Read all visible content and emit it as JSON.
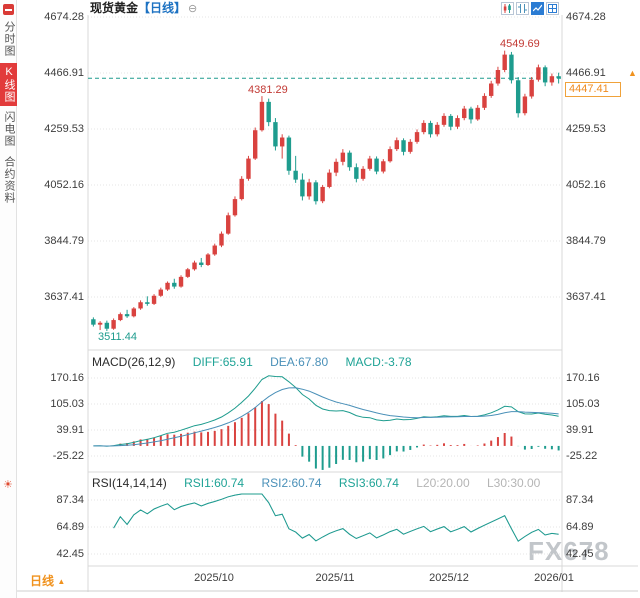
{
  "header": {
    "symbol": "现货黄金",
    "period": "【日线】",
    "collapse_icon": "⊖"
  },
  "toolbar": {
    "buttons": [
      {
        "name": "candlestick-style",
        "active": false
      },
      {
        "name": "ohlc-style",
        "active": false
      },
      {
        "name": "line-style",
        "active": true
      },
      {
        "name": "grid-style",
        "active": false
      }
    ]
  },
  "sidebar": {
    "items": [
      {
        "label": "分时图",
        "active": false
      },
      {
        "label": "K线图",
        "active": true
      },
      {
        "label": "闪电图",
        "active": false
      },
      {
        "label": "合约资料",
        "active": false
      }
    ],
    "tool_icon": "☀"
  },
  "main_chart": {
    "y_ticks": [
      "4674.28",
      "4466.91",
      "4259.53",
      "4052.16",
      "3844.79",
      "3637.41"
    ],
    "price_tag": "4447.41",
    "latest_arrow": "▲",
    "annotations": {
      "peak": "4549.69",
      "interim_peak": "4381.29",
      "low": "3511.44"
    }
  },
  "macd_panel": {
    "title": "MACD(26,12,9)",
    "diff": "DIFF:65.91",
    "dea": "DEA:67.80",
    "macd": "MACD:-3.78",
    "y_ticks": [
      "170.16",
      "105.03",
      "39.91",
      "-25.22"
    ]
  },
  "rsi_panel": {
    "title": "RSI(14,14,14)",
    "rsi1": "RSI1:60.74",
    "rsi2": "RSI2:60.74",
    "rsi3": "RSI3:60.74",
    "l20": "L20:20.00",
    "l30": "L30:30.00",
    "y_ticks": [
      "87.34",
      "64.89",
      "42.45"
    ]
  },
  "x_axis": {
    "period": "日线",
    "arrow": "▲",
    "ticks": [
      "2025/10",
      "2025/11",
      "2025/12",
      "2026/01"
    ]
  },
  "watermark": "FX678",
  "colors": {
    "up": "#d9423f",
    "down": "#1e9c8e",
    "dea_line": "#4a90b8",
    "accent": "#f0921e",
    "blue": "#1d72c2",
    "grid": "#e4e4e4",
    "border": "#d8d8d8"
  },
  "chart_data": {
    "type": "candlestick",
    "title": "现货黄金 日线",
    "conventions": {
      "up": "red",
      "down": "green"
    },
    "y_axis_ticks": [
      4674.28,
      4466.91,
      4259.53,
      4052.16,
      3844.79,
      3637.41
    ],
    "current_price": 4447.41,
    "high": 4549.69,
    "interim_high": 4381.29,
    "low": 3511.44,
    "month_ticks": [
      {
        "index": 18,
        "label": "2025/10"
      },
      {
        "index": 36,
        "label": "2025/11"
      },
      {
        "index": 53,
        "label": "2025/12"
      },
      {
        "index": 69,
        "label": "2026/01"
      }
    ],
    "ohlc": [
      [
        3555,
        3562,
        3528,
        3535
      ],
      [
        3535,
        3548,
        3515,
        3542
      ],
      [
        3542,
        3550,
        3511.44,
        3520
      ],
      [
        3520,
        3558,
        3516,
        3552
      ],
      [
        3552,
        3580,
        3548,
        3574
      ],
      [
        3574,
        3590,
        3560,
        3566
      ],
      [
        3566,
        3600,
        3562,
        3595
      ],
      [
        3595,
        3625,
        3590,
        3618
      ],
      [
        3618,
        3640,
        3605,
        3612
      ],
      [
        3612,
        3648,
        3608,
        3642
      ],
      [
        3642,
        3672,
        3638,
        3665
      ],
      [
        3665,
        3695,
        3660,
        3690
      ],
      [
        3690,
        3705,
        3668,
        3676
      ],
      [
        3676,
        3718,
        3672,
        3712
      ],
      [
        3712,
        3745,
        3708,
        3740
      ],
      [
        3740,
        3772,
        3735,
        3765
      ],
      [
        3765,
        3782,
        3748,
        3756
      ],
      [
        3756,
        3800,
        3752,
        3795
      ],
      [
        3795,
        3835,
        3790,
        3828
      ],
      [
        3828,
        3880,
        3822,
        3872
      ],
      [
        3872,
        3950,
        3868,
        3940
      ],
      [
        3940,
        4010,
        3935,
        4000
      ],
      [
        4000,
        4085,
        3995,
        4075
      ],
      [
        4075,
        4160,
        4068,
        4150
      ],
      [
        4150,
        4265,
        4145,
        4255
      ],
      [
        4255,
        4381.29,
        4250,
        4360
      ],
      [
        4360,
        4372,
        4270,
        4285
      ],
      [
        4285,
        4300,
        4180,
        4195
      ],
      [
        4195,
        4240,
        4150,
        4228
      ],
      [
        4228,
        4235,
        4090,
        4105
      ],
      [
        4105,
        4160,
        4060,
        4072
      ],
      [
        4072,
        4095,
        3995,
        4010
      ],
      [
        4010,
        4075,
        3998,
        4062
      ],
      [
        4062,
        4070,
        3980,
        3992
      ],
      [
        3992,
        4052,
        3985,
        4045
      ],
      [
        4045,
        4110,
        4040,
        4098
      ],
      [
        4098,
        4150,
        4085,
        4138
      ],
      [
        4138,
        4185,
        4125,
        4172
      ],
      [
        4172,
        4180,
        4105,
        4118
      ],
      [
        4118,
        4132,
        4062,
        4075
      ],
      [
        4075,
        4122,
        4068,
        4112
      ],
      [
        4112,
        4160,
        4105,
        4150
      ],
      [
        4150,
        4158,
        4092,
        4102
      ],
      [
        4102,
        4148,
        4095,
        4140
      ],
      [
        4140,
        4195,
        4135,
        4185
      ],
      [
        4185,
        4228,
        4178,
        4218
      ],
      [
        4218,
        4225,
        4162,
        4175
      ],
      [
        4175,
        4222,
        4168,
        4212
      ],
      [
        4212,
        4258,
        4205,
        4248
      ],
      [
        4248,
        4292,
        4240,
        4282
      ],
      [
        4282,
        4290,
        4228,
        4240
      ],
      [
        4240,
        4285,
        4232,
        4275
      ],
      [
        4275,
        4318,
        4268,
        4308
      ],
      [
        4308,
        4315,
        4255,
        4268
      ],
      [
        4268,
        4310,
        4260,
        4300
      ],
      [
        4300,
        4345,
        4292,
        4335
      ],
      [
        4335,
        4342,
        4280,
        4295
      ],
      [
        4295,
        4348,
        4290,
        4338
      ],
      [
        4338,
        4392,
        4330,
        4382
      ],
      [
        4382,
        4438,
        4375,
        4428
      ],
      [
        4428,
        4490,
        4420,
        4478
      ],
      [
        4478,
        4549.69,
        4470,
        4535
      ],
      [
        4535,
        4545,
        4428,
        4440
      ],
      [
        4440,
        4452,
        4302,
        4318
      ],
      [
        4318,
        4390,
        4310,
        4380
      ],
      [
        4380,
        4452,
        4372,
        4442
      ],
      [
        4442,
        4498,
        4435,
        4488
      ],
      [
        4488,
        4495,
        4418,
        4432
      ],
      [
        4432,
        4465,
        4420,
        4455
      ],
      [
        4455,
        4468,
        4428,
        4447.41
      ]
    ],
    "indicators": {
      "macd": {
        "params": [
          26,
          12,
          9
        ],
        "diff": 65.91,
        "dea": 67.8,
        "macd": -3.78,
        "y_ticks": [
          170.16,
          105.03,
          39.91,
          -25.22
        ]
      },
      "rsi": {
        "params": [
          14,
          14,
          14
        ],
        "rsi1": 60.74,
        "rsi2": 60.74,
        "rsi3": 60.74,
        "l20": 20.0,
        "l30": 30.0,
        "y_ticks": [
          87.34,
          64.89,
          42.45
        ]
      }
    }
  }
}
